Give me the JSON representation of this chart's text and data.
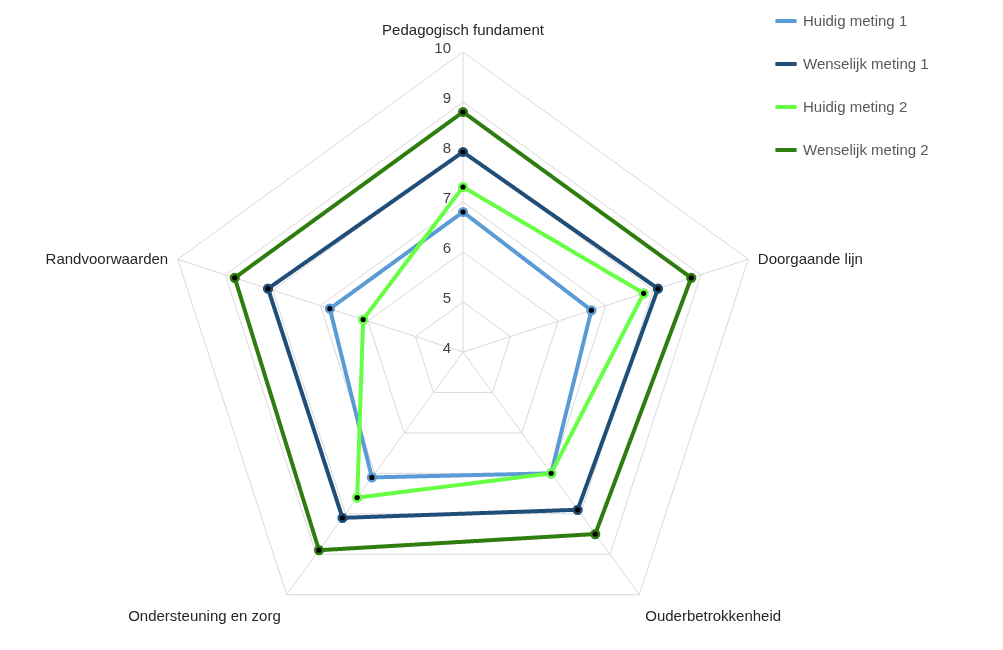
{
  "chart_data": {
    "type": "radar",
    "categories": [
      "Pedagogisch fundament",
      "Doorgaande lijn",
      "Ouderbetrokkenheid",
      "Ondersteuning en zorg",
      "Randvoorwaarden"
    ],
    "series": [
      {
        "name": "Huidig meting 1",
        "color": "#5b9bd5",
        "values": [
          6.8,
          6.7,
          7.0,
          7.1,
          6.8
        ]
      },
      {
        "name": "Wenselijk meting 1",
        "color": "#1f4e79",
        "values": [
          8.0,
          8.1,
          7.9,
          8.1,
          8.1
        ]
      },
      {
        "name": "Huidig meting 2",
        "color": "#66ff44",
        "values": [
          7.3,
          7.8,
          7.0,
          7.6,
          6.1
        ]
      },
      {
        "name": "Wenselijk meting 2",
        "color": "#2e7d0e",
        "values": [
          8.8,
          8.8,
          8.5,
          8.9,
          8.8
        ]
      }
    ],
    "ylim": [
      4,
      10
    ],
    "yticks": [
      4,
      5,
      6,
      7,
      8,
      9,
      10
    ],
    "grid": true,
    "legend": "top right",
    "marker": "circle",
    "line_style": "solid"
  }
}
